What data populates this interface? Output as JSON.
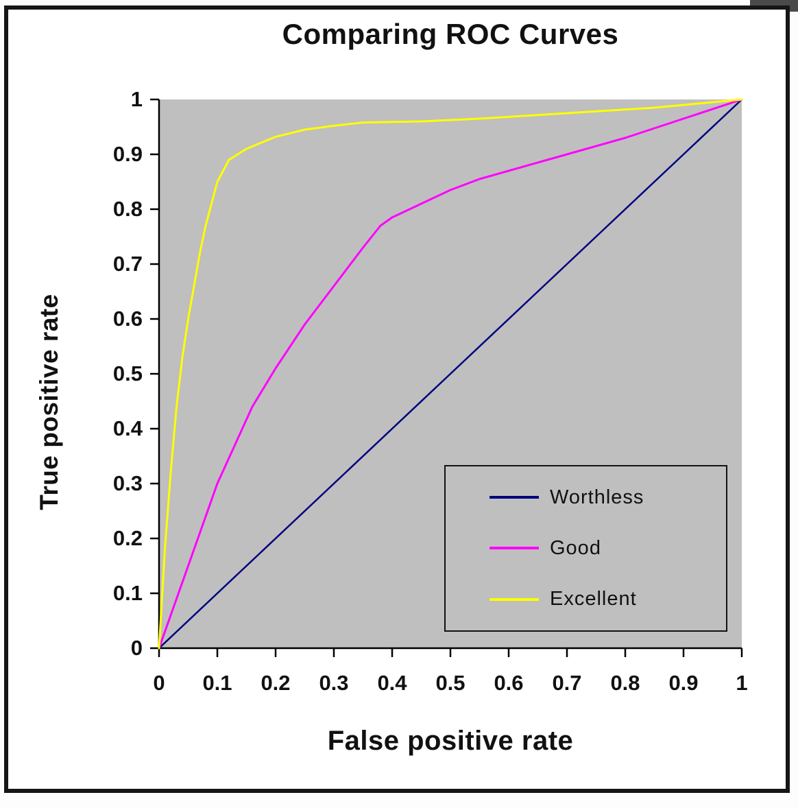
{
  "chart_data": {
    "type": "line",
    "title": "Comparing ROC Curves",
    "xlabel": "False positive rate",
    "ylabel": "True positive rate",
    "xlim": [
      0,
      1
    ],
    "ylim": [
      0,
      1
    ],
    "grid": false,
    "plot_bg": "#bfbfbf",
    "axis_color": "#000000",
    "legend_position": "inside-lower-right",
    "x_ticks": [
      0,
      0.1,
      0.2,
      0.3,
      0.4,
      0.5,
      0.6,
      0.7,
      0.8,
      0.9,
      1
    ],
    "x_tick_labels": [
      "0",
      "0.1",
      "0.2",
      "0.3",
      "0.4",
      "0.5",
      "0.6",
      "0.7",
      "0.8",
      "0.9",
      "1"
    ],
    "y_ticks": [
      0,
      0.1,
      0.2,
      0.3,
      0.4,
      0.5,
      0.6,
      0.7,
      0.8,
      0.9,
      1
    ],
    "y_tick_labels": [
      "0",
      "0.1",
      "0.2",
      "0.3",
      "0.4",
      "0.5",
      "0.6",
      "0.7",
      "0.8",
      "0.9",
      "1"
    ],
    "series": [
      {
        "name": "Worthless",
        "color": "#000080",
        "width": 2.5,
        "points": [
          [
            0,
            0
          ],
          [
            1,
            1
          ]
        ]
      },
      {
        "name": "Good",
        "color": "#ff00ff",
        "width": 3,
        "points": [
          [
            0,
            0
          ],
          [
            0.02,
            0.06
          ],
          [
            0.05,
            0.15
          ],
          [
            0.08,
            0.24
          ],
          [
            0.1,
            0.3
          ],
          [
            0.13,
            0.37
          ],
          [
            0.16,
            0.44
          ],
          [
            0.2,
            0.51
          ],
          [
            0.25,
            0.59
          ],
          [
            0.3,
            0.66
          ],
          [
            0.35,
            0.73
          ],
          [
            0.38,
            0.77
          ],
          [
            0.4,
            0.785
          ],
          [
            0.45,
            0.81
          ],
          [
            0.5,
            0.835
          ],
          [
            0.55,
            0.855
          ],
          [
            0.6,
            0.87
          ],
          [
            0.7,
            0.9
          ],
          [
            0.8,
            0.93
          ],
          [
            0.9,
            0.965
          ],
          [
            1,
            1
          ]
        ]
      },
      {
        "name": "Excellent",
        "color": "#ffff00",
        "width": 3,
        "points": [
          [
            0,
            0
          ],
          [
            0.01,
            0.18
          ],
          [
            0.02,
            0.32
          ],
          [
            0.03,
            0.44
          ],
          [
            0.04,
            0.53
          ],
          [
            0.05,
            0.6
          ],
          [
            0.06,
            0.66
          ],
          [
            0.07,
            0.72
          ],
          [
            0.08,
            0.77
          ],
          [
            0.09,
            0.81
          ],
          [
            0.1,
            0.85
          ],
          [
            0.12,
            0.89
          ],
          [
            0.15,
            0.91
          ],
          [
            0.2,
            0.932
          ],
          [
            0.25,
            0.945
          ],
          [
            0.3,
            0.952
          ],
          [
            0.35,
            0.958
          ],
          [
            0.45,
            0.96
          ],
          [
            0.55,
            0.965
          ],
          [
            0.7,
            0.975
          ],
          [
            0.85,
            0.985
          ],
          [
            1,
            1
          ]
        ]
      }
    ]
  }
}
